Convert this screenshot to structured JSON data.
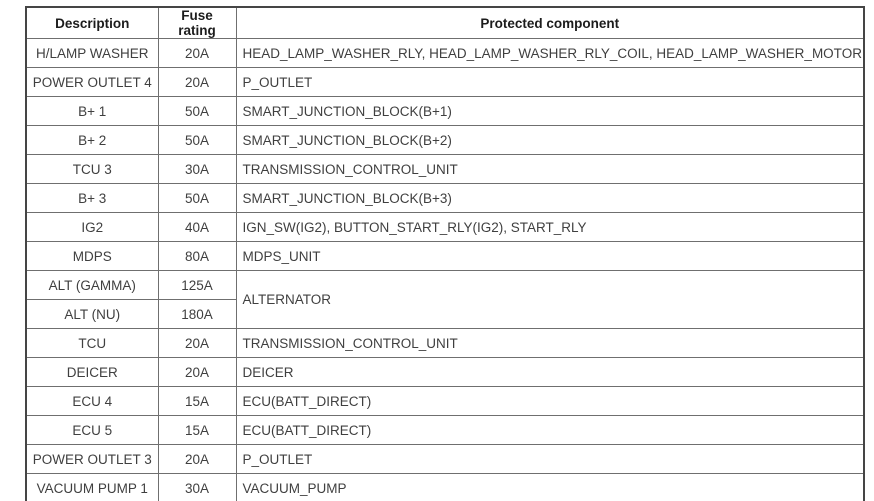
{
  "table": {
    "headers": {
      "description": "Description",
      "fuse_rating": "Fuse rating",
      "protected_component": "Protected component"
    },
    "rows": [
      {
        "description": "H/LAMP WASHER",
        "fuse_rating": "20A",
        "protected_component": "HEAD_LAMP_WASHER_RLY, HEAD_LAMP_WASHER_RLY_COIL, HEAD_LAMP_WASHER_MOTOR"
      },
      {
        "description": "POWER OUTLET 4",
        "fuse_rating": "20A",
        "protected_component": "P_OUTLET"
      },
      {
        "description": "B+ 1",
        "fuse_rating": "50A",
        "protected_component": "SMART_JUNCTION_BLOCK(B+1)"
      },
      {
        "description": "B+ 2",
        "fuse_rating": "50A",
        "protected_component": "SMART_JUNCTION_BLOCK(B+2)"
      },
      {
        "description": "TCU 3",
        "fuse_rating": "30A",
        "protected_component": "TRANSMISSION_CONTROL_UNIT"
      },
      {
        "description": "B+ 3",
        "fuse_rating": "50A",
        "protected_component": "SMART_JUNCTION_BLOCK(B+3)"
      },
      {
        "description": "IG2",
        "fuse_rating": "40A",
        "protected_component": "IGN_SW(IG2), BUTTON_START_RLY(IG2), START_RLY"
      },
      {
        "description": "MDPS",
        "fuse_rating": "80A",
        "protected_component": "MDPS_UNIT"
      },
      {
        "description": "ALT (GAMMA)",
        "fuse_rating": "125A",
        "protected_component": "ALTERNATOR",
        "rowspan": 2
      },
      {
        "description": "ALT (NU)",
        "fuse_rating": "180A",
        "merged_into_above": true
      },
      {
        "description": "TCU",
        "fuse_rating": "20A",
        "protected_component": "TRANSMISSION_CONTROL_UNIT"
      },
      {
        "description": "DEICER",
        "fuse_rating": "20A",
        "protected_component": "DEICER"
      },
      {
        "description": "ECU 4",
        "fuse_rating": "15A",
        "protected_component": "ECU(BATT_DIRECT)"
      },
      {
        "description": "ECU 5",
        "fuse_rating": "15A",
        "protected_component": "ECU(BATT_DIRECT)"
      },
      {
        "description": "POWER OUTLET 3",
        "fuse_rating": "20A",
        "protected_component": "P_OUTLET"
      },
      {
        "description": "VACUUM PUMP 1",
        "fuse_rating": "30A",
        "protected_component": "VACUUM_PUMP"
      }
    ]
  },
  "colors": {
    "outer_border": "#454545",
    "inner_border": "#6f6f6f",
    "body_text": "#3f3f3f",
    "header_text": "#1c1c1c",
    "background": "#ffffff"
  }
}
